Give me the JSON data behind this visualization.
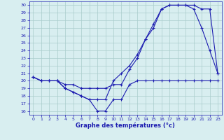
{
  "line1_x": [
    0,
    1,
    2,
    3,
    4,
    5,
    6,
    7,
    8,
    9,
    10,
    11,
    12,
    13,
    14,
    15,
    16,
    17,
    18,
    19,
    20,
    21,
    22,
    23
  ],
  "line1_y": [
    20.5,
    20.0,
    20.0,
    20.0,
    19.0,
    18.5,
    18.0,
    17.5,
    17.5,
    17.5,
    20.0,
    21.0,
    22.0,
    23.5,
    25.5,
    27.0,
    29.5,
    30.0,
    30.0,
    30.0,
    29.5,
    27.0,
    24.0,
    21.0
  ],
  "line2_x": [
    0,
    1,
    2,
    3,
    4,
    5,
    6,
    7,
    8,
    9,
    10,
    11,
    12,
    13,
    14,
    15,
    16,
    17,
    18,
    19,
    20,
    21,
    22,
    23
  ],
  "line2_y": [
    20.5,
    20.0,
    20.0,
    20.0,
    19.5,
    19.5,
    19.0,
    19.0,
    19.0,
    19.0,
    19.5,
    19.5,
    21.5,
    23.0,
    25.5,
    27.5,
    29.5,
    30.0,
    30.0,
    30.0,
    30.0,
    29.5,
    29.5,
    21.0
  ],
  "line3_x": [
    0,
    1,
    2,
    3,
    4,
    5,
    6,
    7,
    8,
    9,
    10,
    11,
    12,
    13,
    14,
    15,
    16,
    17,
    18,
    19,
    20,
    21,
    22,
    23
  ],
  "line3_y": [
    20.5,
    20.0,
    20.0,
    20.0,
    19.0,
    18.5,
    18.0,
    17.5,
    16.0,
    16.0,
    17.5,
    17.5,
    19.5,
    20.0,
    20.0,
    20.0,
    20.0,
    20.0,
    20.0,
    20.0,
    20.0,
    20.0,
    20.0,
    20.0
  ],
  "line_color": "#1c1cb0",
  "bg_color": "#d8eef0",
  "grid_color": "#aacccc",
  "xlim": [
    -0.5,
    23.5
  ],
  "ylim": [
    15.5,
    30.5
  ],
  "xlabel": "Graphe des températures (°c)",
  "yticks": [
    16,
    17,
    18,
    19,
    20,
    21,
    22,
    23,
    24,
    25,
    26,
    27,
    28,
    29,
    30
  ],
  "xticks": [
    0,
    1,
    2,
    3,
    4,
    5,
    6,
    7,
    8,
    9,
    10,
    11,
    12,
    13,
    14,
    15,
    16,
    17,
    18,
    19,
    20,
    21,
    22,
    23
  ],
  "marker": "+"
}
